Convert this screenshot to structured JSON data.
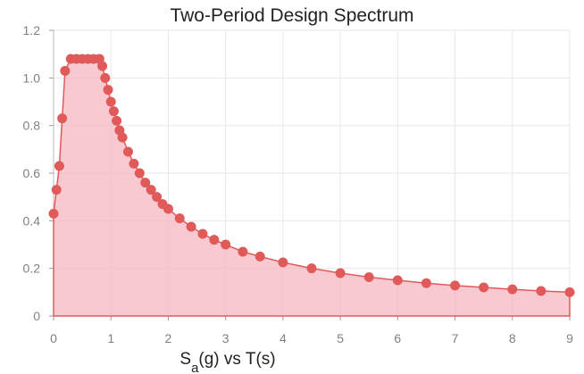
{
  "chart_data": {
    "type": "area",
    "title": "Two-Period Design Spectrum",
    "xlabel_main": "S",
    "xlabel_sub": "a",
    "xlabel_rest": "(g) vs T(s)",
    "xlim": [
      0,
      9
    ],
    "ylim": [
      0,
      1.2
    ],
    "x_ticks": [
      "0",
      "1",
      "2",
      "3",
      "4",
      "5",
      "6",
      "7",
      "8",
      "9"
    ],
    "y_ticks": [
      "0",
      "0.2",
      "0.4",
      "0.6",
      "0.8",
      "1.0",
      "1.2"
    ],
    "grid": true,
    "colors": {
      "line": "#e05a5a",
      "fill": "#f6b7c2",
      "grid": "#e8e8e8"
    },
    "series": [
      {
        "x": [
          0,
          0.05,
          0.1,
          0.15,
          0.2,
          0.3,
          0.4,
          0.5,
          0.6,
          0.7,
          0.8,
          0.85,
          0.9,
          0.95,
          1.0,
          1.05,
          1.1,
          1.15,
          1.2,
          1.3,
          1.4,
          1.5,
          1.6,
          1.7,
          1.8,
          1.9,
          2.0,
          2.2,
          2.4,
          2.6,
          2.8,
          3.0,
          3.3,
          3.6,
          4.0,
          4.5,
          5.0,
          5.5,
          6.0,
          6.5,
          7.0,
          7.5,
          8.0,
          8.5,
          9.0
        ],
        "y": [
          0.43,
          0.53,
          0.63,
          0.83,
          1.03,
          1.08,
          1.08,
          1.08,
          1.08,
          1.08,
          1.08,
          1.05,
          1.0,
          0.95,
          0.9,
          0.86,
          0.82,
          0.78,
          0.75,
          0.69,
          0.64,
          0.6,
          0.56,
          0.53,
          0.5,
          0.47,
          0.45,
          0.41,
          0.375,
          0.345,
          0.32,
          0.3,
          0.27,
          0.25,
          0.225,
          0.2,
          0.18,
          0.163,
          0.15,
          0.138,
          0.128,
          0.12,
          0.112,
          0.105,
          0.1
        ]
      }
    ]
  }
}
